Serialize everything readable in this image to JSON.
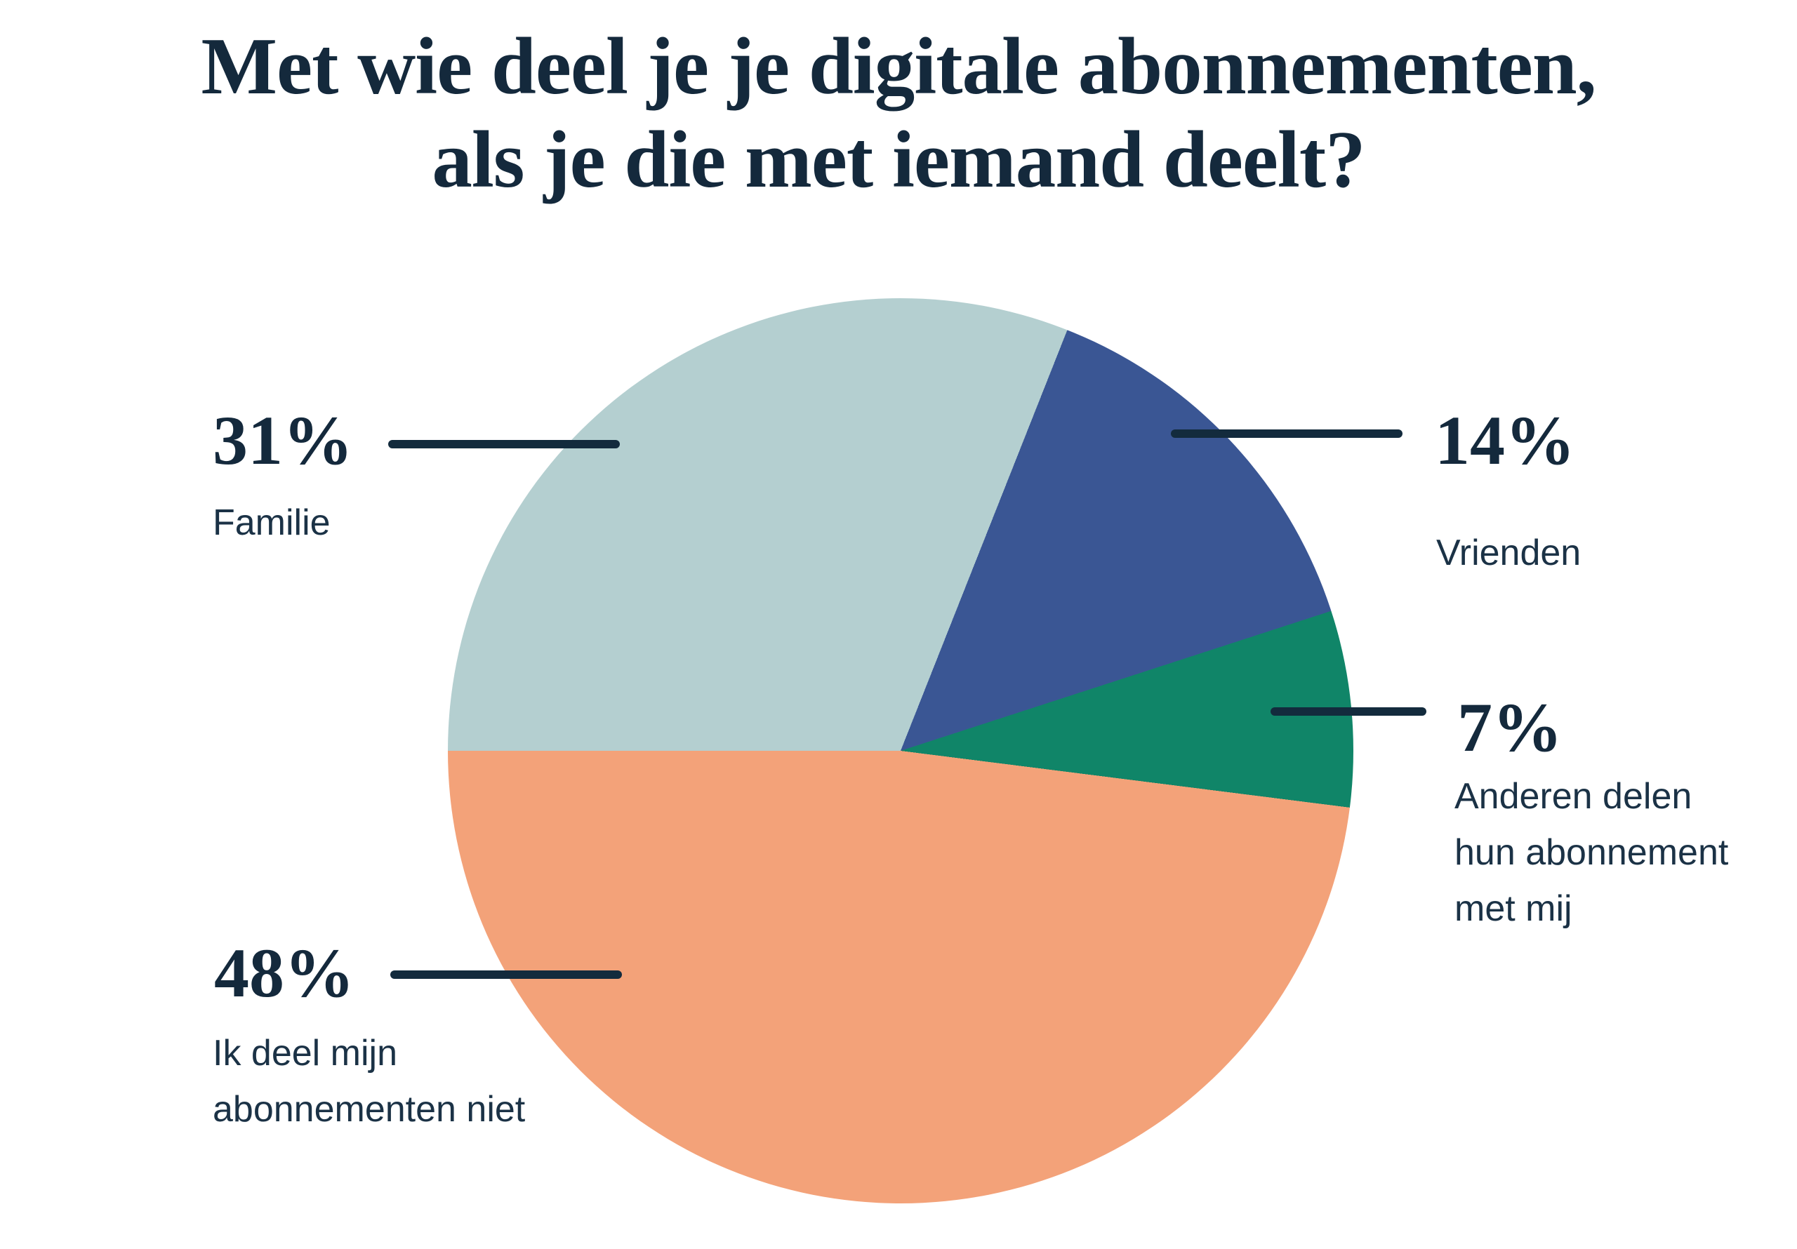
{
  "title": {
    "lines": [
      "Met wie deel je je digitale abonnementen,",
      "als je die met iemand deelt?"
    ]
  },
  "chart_data": {
    "type": "pie",
    "title": "Met wie deel je je digitale abonnementen, als je die met iemand deelt?",
    "slices": [
      {
        "label": "Vrienden",
        "value": 14,
        "color": "#3A5694"
      },
      {
        "label": "Anderen delen hun abonnement met mij",
        "value": 7,
        "color": "#108568"
      },
      {
        "label": "Ik deel mijn abonnementen niet",
        "value": 48,
        "color": "#F3A279"
      },
      {
        "label": "Familie",
        "value": 31,
        "color": "#B4CFD0"
      }
    ],
    "start_angle_deg": 21.6,
    "legend_position": "callout-labels",
    "text_color": "#14293C",
    "callout_line_color": "#132B3D",
    "background": "#FFFFFF"
  },
  "callouts": {
    "familie": {
      "pct": "31%",
      "lines": [
        "Familie"
      ]
    },
    "vrienden": {
      "pct": "14%",
      "lines": [
        "Vrienden"
      ]
    },
    "anderen": {
      "pct": "7%",
      "lines": [
        "Anderen delen",
        "hun abonnement",
        "met mij"
      ]
    },
    "ik_deel": {
      "pct": "48%",
      "lines": [
        "Ik deel mijn",
        "abonnementen niet"
      ]
    }
  }
}
